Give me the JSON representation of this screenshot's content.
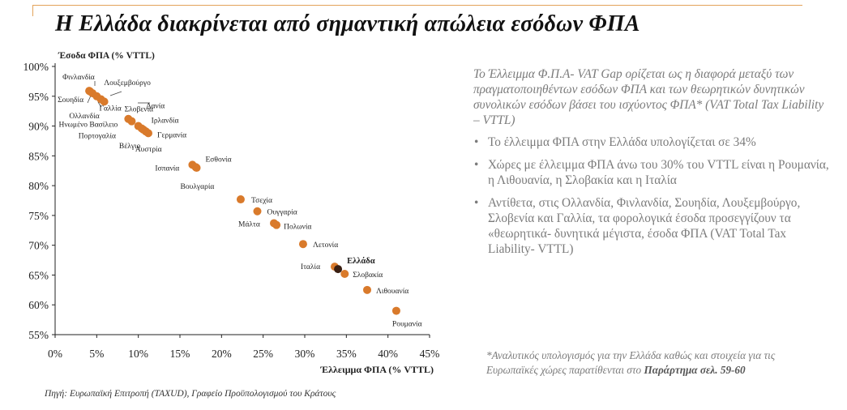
{
  "title": "Η Ελλάδα διακρίνεται από σημαντική απώλεια εσόδων ΦΠΑ",
  "source": "Πηγή: Ευρωπαϊκή Επιτροπή (TAXUD), Γραφείο Προϋπολογισμού του Κράτους",
  "colors": {
    "accent": "#d97a2b",
    "greece": "#3a1f12",
    "rule": "#e3a35a"
  },
  "side": {
    "definition": "Το Έλλειμμα Φ.Π.Α- VAT Gap ορίζεται ως η διαφορά μεταξύ των πραγματοποιηθέντων εσόδων ΦΠΑ και των θεωρητικών δυνητικών συνολικών εσόδων βάσει του ισχύοντος ΦΠΑ* (VAT Total Tax Liability – VTTL)",
    "bullet_symbol": "•",
    "bullets": [
      "Το έλλειμμα ΦΠΑ στην Ελλάδα υπολογίζεται σε 34%",
      "Χώρες με έλλειμμα ΦΠΑ άνω του 30% του VTTL είναι η Ρουμανία, η Λιθουανία, η Σλοβακία και η Ιταλία",
      "Αντίθετα, στις Ολλανδία, Φινλανδία, Σουηδία, Λουξεμβούργο, Σλοβενία και Γαλλία, τα φορολογικά έσοδα προσεγγίζουν τα «θεωρητικά- δυνητικά μέγιστα, έσοδα ΦΠΑ (VAT Total Tax Liability- VTTL)"
    ],
    "note_text": "*Αναλυτικός υπολογισμός για την Ελλάδα καθώς και στοιχεία για τις Ευρωπαϊκές χώρες παρατίθενται στο",
    "note_ref": "Παράρτημα σελ. 59-60"
  },
  "chart_data": {
    "type": "scatter",
    "ylabel": "Έσοδα ΦΠΑ (% VTTL)",
    "xlabel": "Έλλειμμα ΦΠΑ (% VTTL)",
    "xlim": [
      0,
      45
    ],
    "ylim": [
      55,
      100
    ],
    "xticks": [
      0,
      5,
      10,
      15,
      20,
      25,
      30,
      35,
      40,
      45
    ],
    "yticks": [
      55,
      60,
      65,
      70,
      75,
      80,
      85,
      90,
      95,
      100
    ],
    "xtick_labels": [
      "0%",
      "5%",
      "10%",
      "15%",
      "20%",
      "25%",
      "30%",
      "35%",
      "40%",
      "45%"
    ],
    "ytick_labels": [
      "55%",
      "60%",
      "65%",
      "70%",
      "75%",
      "80%",
      "85%",
      "90%",
      "95%",
      "100%"
    ],
    "points": [
      {
        "label": "Φινλανδία",
        "x": 4.1,
        "y": 95.9
      },
      {
        "label": "Λουξεμβούργο",
        "x": 4.5,
        "y": 95.5
      },
      {
        "label": "Σουηδία",
        "x": 4.2,
        "y": 95.8
      },
      {
        "label": "Ολλανδία",
        "x": 5.0,
        "y": 95.0
      },
      {
        "label": "Γαλλία",
        "x": 5.5,
        "y": 94.5
      },
      {
        "label": "Σλοβενία",
        "x": 5.9,
        "y": 94.1
      },
      {
        "label": "Δανία",
        "x": 8.8,
        "y": 91.2
      },
      {
        "label": "Ηνωμένο Βασίλειο",
        "x": 9.2,
        "y": 90.8
      },
      {
        "label": "Ιρλανδία",
        "x": 10.0,
        "y": 90.0
      },
      {
        "label": "Πορτογαλία",
        "x": 10.4,
        "y": 89.6
      },
      {
        "label": "Βέλγιο",
        "x": 10.9,
        "y": 89.1
      },
      {
        "label": "Γερμανία",
        "x": 11.2,
        "y": 88.8
      },
      {
        "label": "Αυστρία",
        "x": 10.6,
        "y": 89.4
      },
      {
        "label": "Ισπανία",
        "x": 16.5,
        "y": 83.5
      },
      {
        "label": "Εσθονία",
        "x": 16.9,
        "y": 83.1
      },
      {
        "label": "Βουλγαρία",
        "x": 17.0,
        "y": 83.0
      },
      {
        "label": "Τσεχία",
        "x": 22.3,
        "y": 77.7
      },
      {
        "label": "Ουγγαρία",
        "x": 24.3,
        "y": 75.7
      },
      {
        "label": "Μάλτα",
        "x": 26.3,
        "y": 73.7
      },
      {
        "label": "Πολωνία",
        "x": 26.6,
        "y": 73.4
      },
      {
        "label": "Λετονία",
        "x": 29.8,
        "y": 70.2
      },
      {
        "label": "Ιταλία",
        "x": 33.6,
        "y": 66.4
      },
      {
        "label": "Ελλάδα",
        "x": 34.0,
        "y": 66.0,
        "highlight": true
      },
      {
        "label": "Σλοβακία",
        "x": 34.8,
        "y": 65.2
      },
      {
        "label": "Λιθουανία",
        "x": 37.5,
        "y": 62.5
      },
      {
        "label": "Ρουμανία",
        "x": 41.0,
        "y": 59.0
      }
    ]
  }
}
